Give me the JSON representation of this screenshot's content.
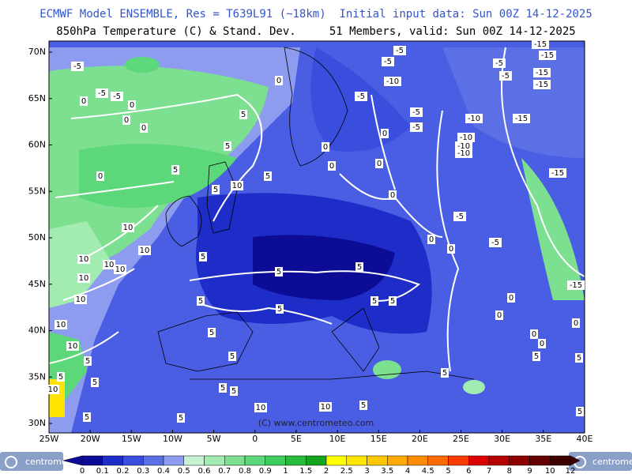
{
  "header": {
    "line1": "ECMWF Model ENSEMBLE, Res = T639L91 (~18km)  Initial input data: Sun 00Z 14-12-2025",
    "line2": "850hPa Temperature (C) & Stand. Dev.     51 Members, valid: Sun 00Z 14-12-2025"
  },
  "map": {
    "lat_labels": [
      "70N",
      "65N",
      "60N",
      "55N",
      "50N",
      "45N",
      "40N",
      "35N",
      "30N"
    ],
    "lon_labels": [
      "25W",
      "20W",
      "15W",
      "10W",
      "5W",
      "0",
      "5E",
      "10E",
      "15E",
      "20E",
      "25E",
      "30E",
      "35E",
      "40E"
    ],
    "watermark": "(C) www.centrometeo.com",
    "contour_labels": [
      "-5",
      "-5",
      "-5",
      "0",
      "0",
      "0",
      "0",
      "0",
      "5",
      "5",
      "5",
      "0",
      "5",
      "10",
      "5",
      "10",
      "10",
      "10",
      "10",
      "10",
      "10",
      "10",
      "10",
      "10",
      "5",
      "5",
      "10",
      "5",
      "5",
      "5",
      "5",
      "5",
      "5",
      "5",
      "5",
      "5",
      "5",
      "5",
      "5",
      "5",
      "5",
      "10",
      "10",
      "5",
      "0",
      "0",
      "0",
      "-5",
      "-5",
      "-5",
      "-10",
      "-5",
      "-5",
      "-5",
      "0",
      "0",
      "0",
      "0",
      "-10",
      "-10",
      "-10",
      "-10",
      "-15",
      "-15",
      "-15",
      "-15",
      "-15",
      "-15",
      "-5",
      "-5",
      "-5",
      "5",
      "0",
      "0",
      "0",
      "0",
      "-15",
      "5",
      "5",
      "5",
      "0"
    ]
  },
  "colorbar": {
    "labels": [
      "0",
      "0.1",
      "0.2",
      "0.3",
      "0.4",
      "0.5",
      "0.6",
      "0.7",
      "0.8",
      "0.9",
      "1",
      "1.5",
      "2",
      "2.5",
      "3",
      "3.5",
      "4",
      "4.5",
      "5",
      "6",
      "7",
      "8",
      "9",
      "10",
      "12"
    ],
    "colors": [
      "#0c0c96",
      "#1e2cc8",
      "#3a4ede",
      "#5c70e6",
      "#8e9cf0",
      "#c6f2d2",
      "#a2ecb2",
      "#7ce090",
      "#5cd87a",
      "#3ecc5c",
      "#28bc3e",
      "#14a41e",
      "#ffff00",
      "#ffe400",
      "#ffc800",
      "#ffaa00",
      "#ff8c00",
      "#ff6a00",
      "#ff3c00",
      "#dc0000",
      "#b40000",
      "#8c0000",
      "#640000",
      "#3c0000"
    ]
  },
  "logos": {
    "left": "centrometeo",
    "right": "centrometeo"
  }
}
